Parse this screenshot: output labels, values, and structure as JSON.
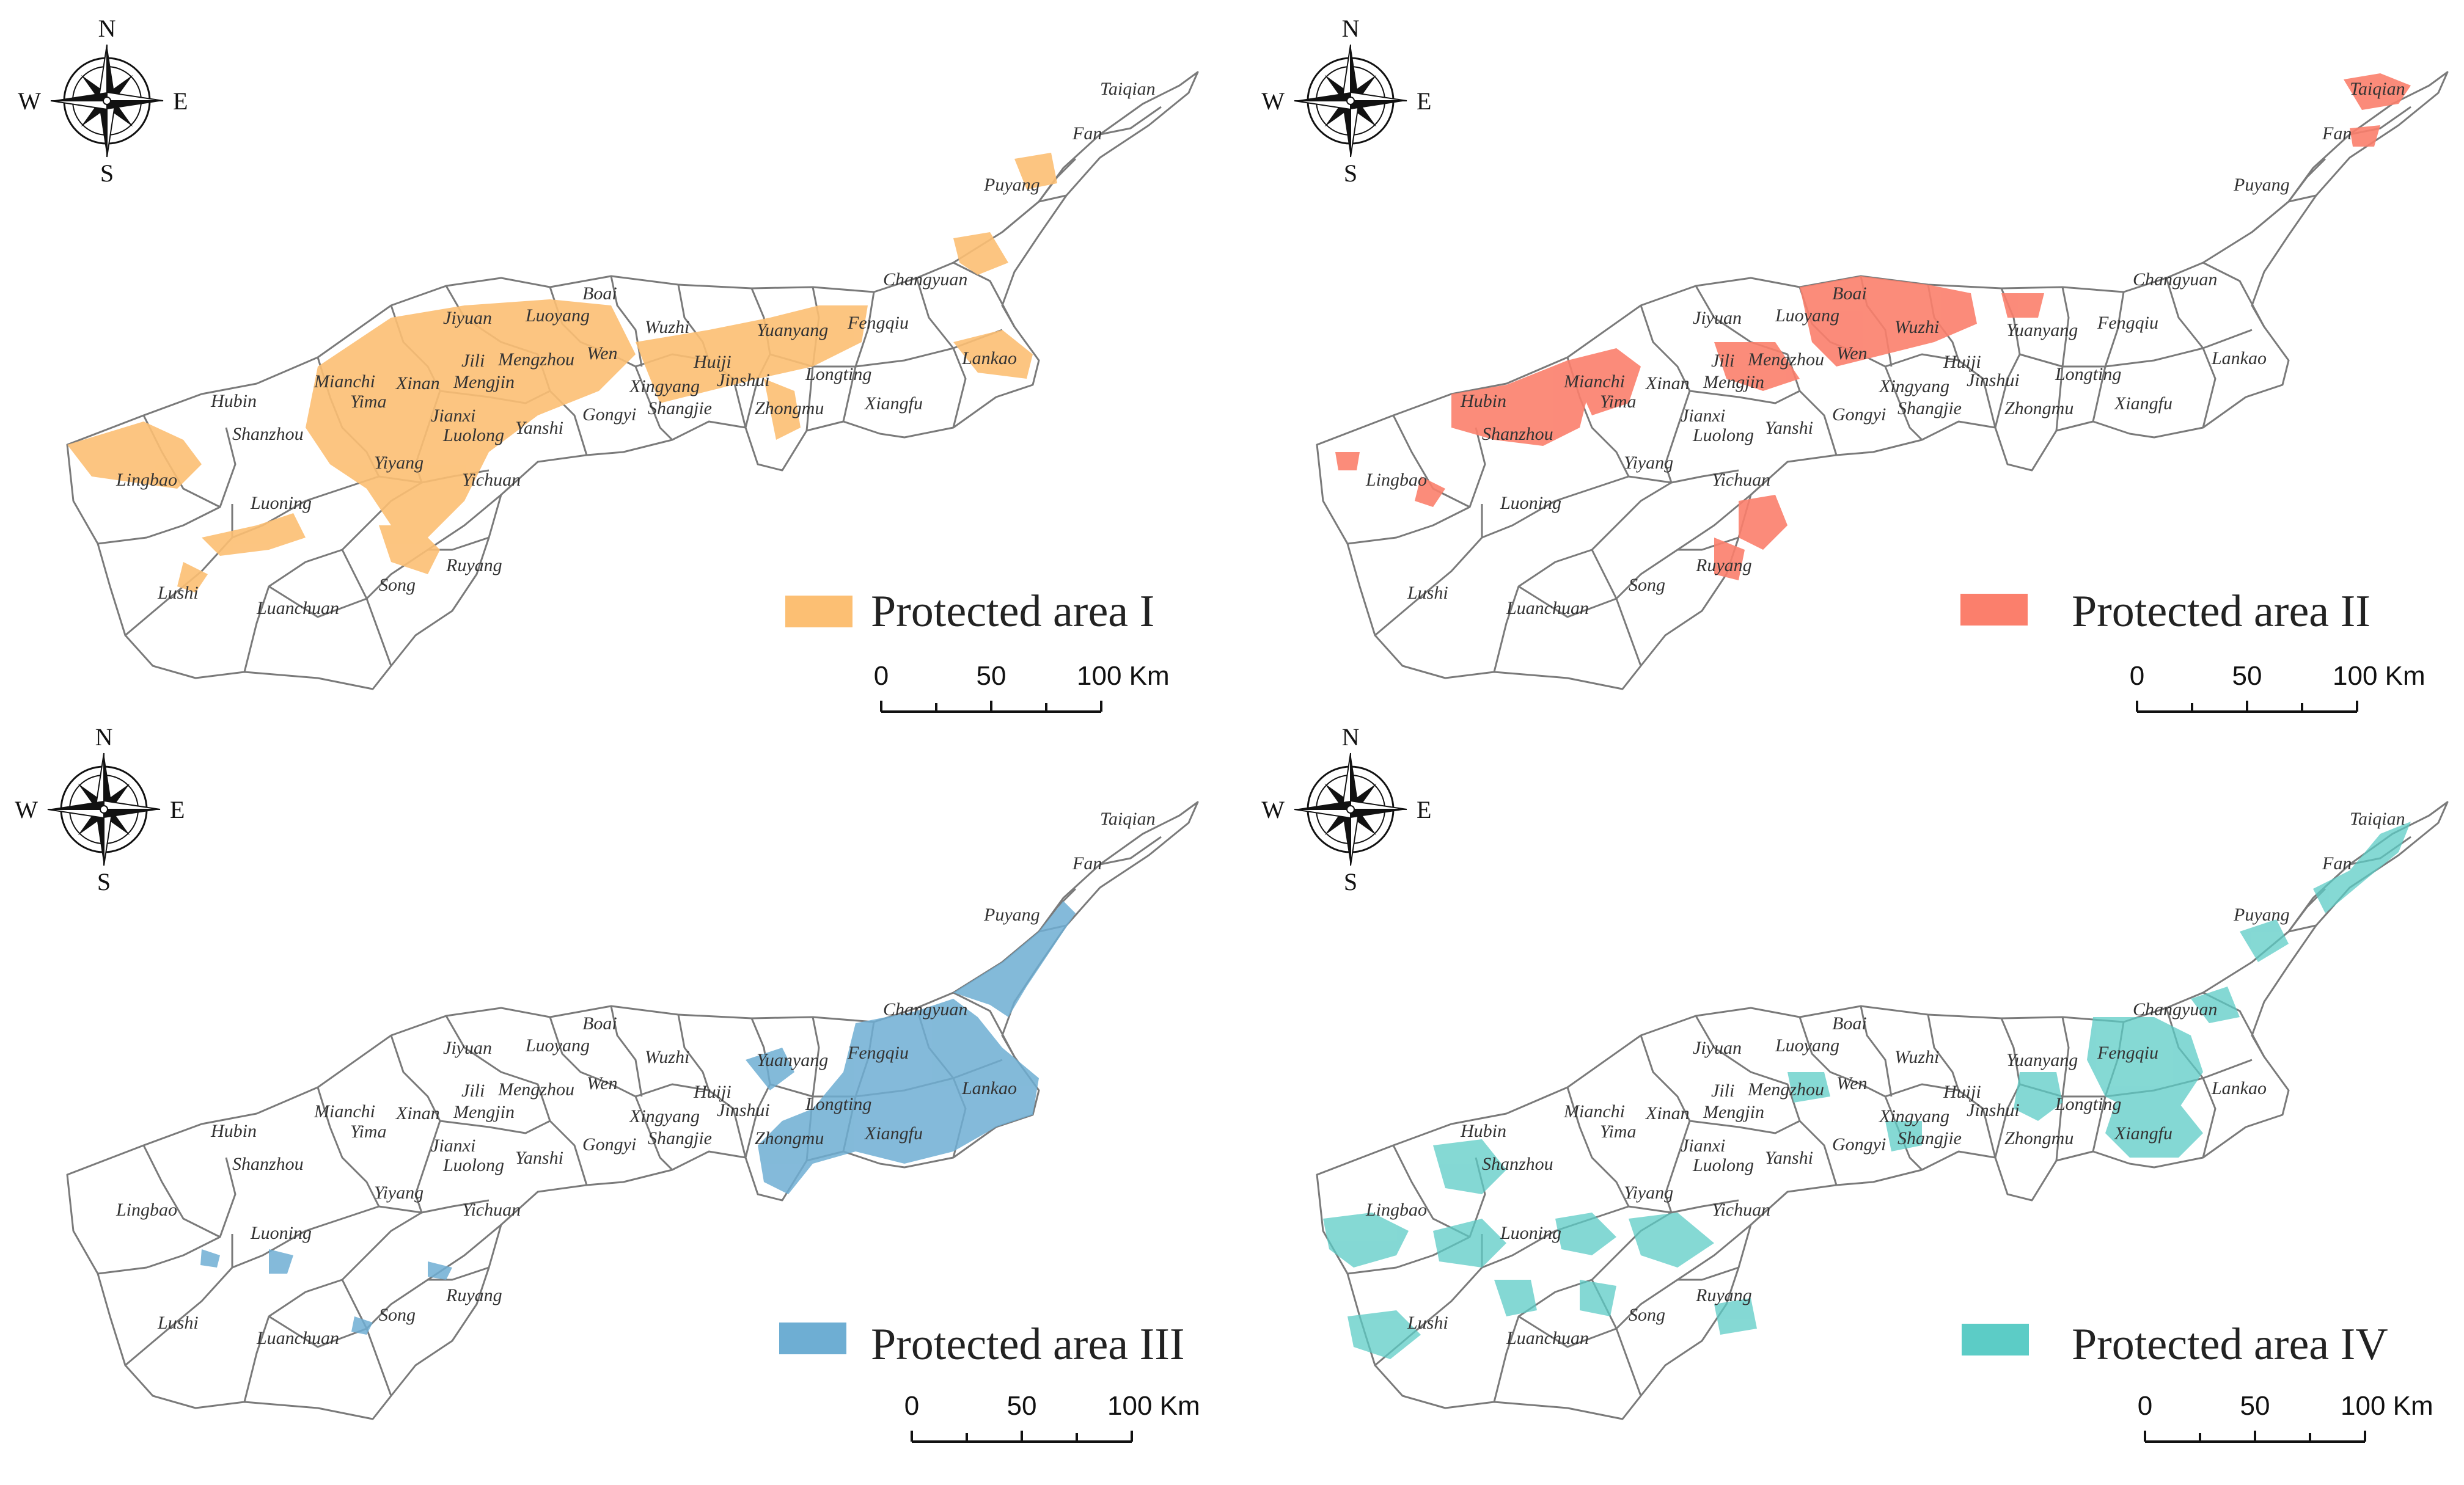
{
  "compass": {
    "north": "N",
    "south": "S",
    "east": "E",
    "west": "W"
  },
  "county_labels": {
    "taiqian": "Taiqian",
    "fan": "Fan",
    "puyang": "Puyang",
    "changyuan": "Changyuan",
    "fengqiu": "Fengqiu",
    "lankao": "Lankao",
    "longting": "Longting",
    "xiangfu": "Xiangfu",
    "zhongmu": "Zhongmu",
    "yuanyang": "Yuanyang",
    "huiji": "Huiji",
    "jinshui": "Jinshui",
    "xingyang": "Xingyang",
    "shangjie": "Shangjie",
    "wuzhi": "Wuzhi",
    "wen": "Wen",
    "boai": "Boai",
    "jiyuan": "Jiyuan",
    "luoyang": "Luoyang",
    "jili": "Jili",
    "mengzhou": "Mengzhou",
    "mengjin": "Mengjin",
    "xinan": "Xinan",
    "mianchi": "Mianchi",
    "yima": "Yima",
    "hubin": "Hubin",
    "shanzhou": "Shanzhou",
    "lingbao": "Lingbao",
    "jianxi": "Jianxi",
    "luolong": "Luolong",
    "yanshi": "Yanshi",
    "gongyi": "Gongyi",
    "yiyang": "Yiyang",
    "yichuan": "Yichuan",
    "luoning": "Luoning",
    "lushi": "Lushi",
    "luanchuan": "Luanchuan",
    "song": "Song",
    "ruyang": "Ruyang"
  },
  "scale_bar": {
    "tick_0": "0",
    "tick_50": "50",
    "tick_100": "100 Km"
  },
  "panels": [
    {
      "legend": "Protected area I",
      "color": "#fcbf73",
      "focus": "west"
    },
    {
      "legend": "Protected area II",
      "color": "#fb7f6c",
      "focus": "central"
    },
    {
      "legend": "Protected area III",
      "color": "#6eaed3",
      "focus": "east"
    },
    {
      "legend": "Protected area IV",
      "color": "#5cccc6",
      "focus": "spread"
    }
  ]
}
